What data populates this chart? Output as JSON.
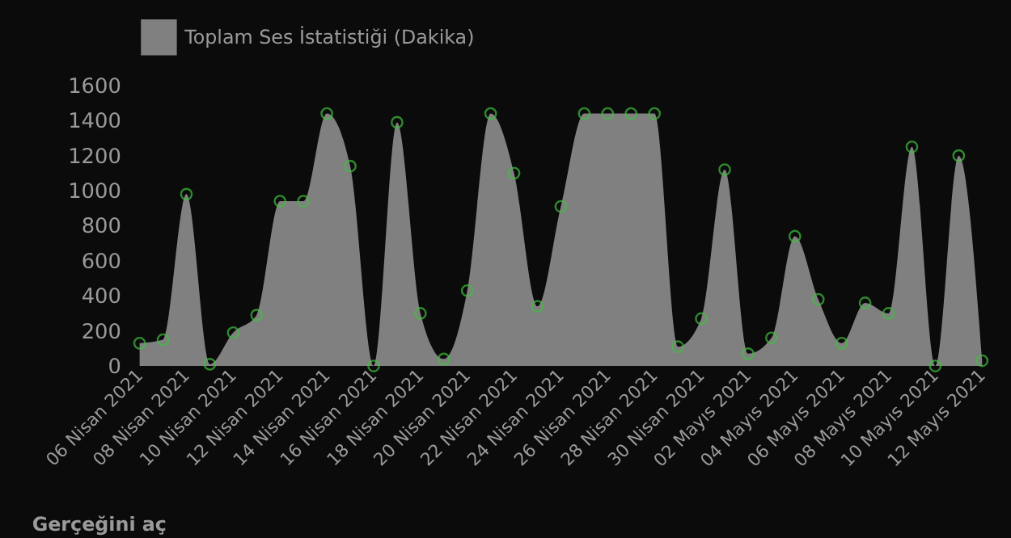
{
  "chart_data": {
    "type": "area",
    "x": [
      "2021-04-06",
      "2021-04-07",
      "2021-04-08",
      "2021-04-09",
      "2021-04-10",
      "2021-04-11",
      "2021-04-12",
      "2021-04-13",
      "2021-04-14",
      "2021-04-15",
      "2021-04-16",
      "2021-04-17",
      "2021-04-18",
      "2021-04-19",
      "2021-04-20",
      "2021-04-21",
      "2021-04-22",
      "2021-04-23",
      "2021-04-24",
      "2021-04-25",
      "2021-04-26",
      "2021-04-27",
      "2021-04-28",
      "2021-04-29",
      "2021-04-30",
      "2021-05-01",
      "2021-05-02",
      "2021-05-03",
      "2021-05-04",
      "2021-05-05",
      "2021-05-06",
      "2021-05-07",
      "2021-05-08",
      "2021-05-09",
      "2021-05-10",
      "2021-05-11",
      "2021-05-12"
    ],
    "series": [
      {
        "name": "Toplam Ses İstatistiği (Dakika)",
        "color": "#808080",
        "values": [
          130,
          150,
          980,
          10,
          190,
          290,
          940,
          940,
          1440,
          1140,
          0,
          1390,
          300,
          40,
          430,
          1440,
          1100,
          340,
          910,
          1440,
          1440,
          1440,
          1440,
          110,
          270,
          1120,
          70,
          160,
          740,
          380,
          130,
          360,
          300,
          1250,
          0,
          1200,
          30
        ]
      }
    ],
    "xlim": [
      "2021-04-06",
      "2021-05-12"
    ],
    "xticks": [
      {
        "value": "2021-04-06",
        "label": "06 Nisan 2021"
      },
      {
        "value": "2021-04-08",
        "label": "08 Nisan 2021"
      },
      {
        "value": "2021-04-10",
        "label": "10 Nisan 2021"
      },
      {
        "value": "2021-04-12",
        "label": "12 Nisan 2021"
      },
      {
        "value": "2021-04-14",
        "label": "14 Nisan 2021"
      },
      {
        "value": "2021-04-16",
        "label": "16 Nisan 2021"
      },
      {
        "value": "2021-04-18",
        "label": "18 Nisan 2021"
      },
      {
        "value": "2021-04-20",
        "label": "20 Nisan 2021"
      },
      {
        "value": "2021-04-22",
        "label": "22 Nisan 2021"
      },
      {
        "value": "2021-04-24",
        "label": "24 Nisan 2021"
      },
      {
        "value": "2021-04-26",
        "label": "26 Nisan 2021"
      },
      {
        "value": "2021-04-28",
        "label": "28 Nisan 2021"
      },
      {
        "value": "2021-04-30",
        "label": "30 Nisan 2021"
      },
      {
        "value": "2021-05-02",
        "label": "02 Mayıs 2021"
      },
      {
        "value": "2021-05-04",
        "label": "04 Mayıs 2021"
      },
      {
        "value": "2021-05-06",
        "label": "06 Mayıs 2021"
      },
      {
        "value": "2021-05-08",
        "label": "08 Mayıs 2021"
      },
      {
        "value": "2021-05-10",
        "label": "10 Mayıs 2021"
      },
      {
        "value": "2021-05-12",
        "label": "12 Mayıs 2021"
      }
    ],
    "ylim": [
      0,
      1600
    ],
    "yticks": [
      0,
      200,
      400,
      600,
      800,
      1000,
      1200,
      1400,
      1600
    ],
    "grid": false,
    "legend": "top",
    "marker": "circle",
    "annotations": [
      "Gerçeğini aç"
    ]
  }
}
